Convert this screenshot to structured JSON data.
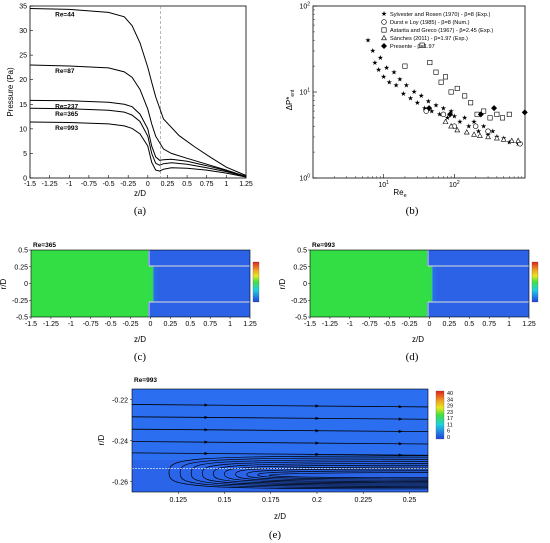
{
  "panels": {
    "a": "(a)",
    "b": "(b)",
    "c": "(c)",
    "d": "(d)",
    "e": "(e)"
  },
  "chart_data": [
    {
      "id": "a",
      "type": "line",
      "xlabel": "z/D",
      "ylabel": "Pressure (Pa)",
      "xlim": [
        -1.5,
        1.25
      ],
      "ylim": [
        0,
        35
      ],
      "xticks": [
        "-1.5",
        "-1.25",
        "-1",
        "-0.75",
        "-0.5",
        "-0.25",
        "0",
        "0.25",
        "0.5",
        "0.75",
        "1",
        "1.25"
      ],
      "yticks": [
        "0",
        "5",
        "10",
        "15",
        "20",
        "25",
        "30",
        "35"
      ],
      "series": [
        {
          "name": "Re=44",
          "x": [
            -1.5,
            -1.0,
            -0.5,
            -0.3,
            -0.2,
            -0.1,
            0.0,
            0.05,
            0.1,
            0.2,
            0.4,
            0.6,
            0.8,
            1.0,
            1.25
          ],
          "y": [
            34.5,
            34.3,
            33.7,
            32.8,
            31.0,
            27.5,
            22.5,
            19.5,
            16.5,
            12.0,
            8.6,
            6.3,
            4.2,
            2.2,
            0.5
          ]
        },
        {
          "name": "Re=87",
          "x": [
            -1.5,
            -1.0,
            -0.5,
            -0.3,
            -0.2,
            -0.1,
            0.0,
            0.05,
            0.1,
            0.2,
            0.3,
            0.5,
            0.75,
            1.0,
            1.25
          ],
          "y": [
            23.0,
            22.8,
            22.4,
            21.6,
            20.5,
            18.0,
            14.0,
            11.0,
            8.5,
            5.9,
            5.0,
            4.0,
            2.8,
            1.6,
            0.3
          ]
        },
        {
          "name": "Re=237",
          "x": [
            -1.5,
            -1.0,
            -0.5,
            -0.3,
            -0.2,
            -0.1,
            0.0,
            0.05,
            0.1,
            0.15,
            0.2,
            0.3,
            0.5,
            0.75,
            1.0,
            1.25
          ],
          "y": [
            15.8,
            15.7,
            15.4,
            15.0,
            14.5,
            13.0,
            10.0,
            6.5,
            4.3,
            3.6,
            3.7,
            3.8,
            3.4,
            2.5,
            1.5,
            0.3
          ]
        },
        {
          "name": "Re=365",
          "x": [
            -1.5,
            -1.0,
            -0.5,
            -0.3,
            -0.2,
            -0.1,
            0.0,
            0.05,
            0.1,
            0.15,
            0.2,
            0.3,
            0.5,
            0.75,
            1.0,
            1.25
          ],
          "y": [
            14.2,
            14.1,
            13.8,
            13.4,
            12.8,
            11.5,
            8.5,
            5.0,
            3.0,
            2.6,
            2.9,
            3.1,
            2.8,
            2.1,
            1.3,
            0.3
          ]
        },
        {
          "name": "Re=993",
          "x": [
            -1.5,
            -1.0,
            -0.5,
            -0.3,
            -0.2,
            -0.1,
            0.0,
            0.05,
            0.1,
            0.15,
            0.2,
            0.3,
            0.5,
            0.75,
            1.0,
            1.25
          ],
          "y": [
            11.4,
            11.3,
            11.0,
            10.6,
            10.1,
            9.0,
            6.5,
            3.2,
            1.6,
            1.4,
            1.8,
            2.1,
            2.0,
            1.6,
            1.0,
            0.2
          ]
        }
      ]
    },
    {
      "id": "b",
      "type": "scatter",
      "xlabel": "Re",
      "xlabel_sub": "e",
      "ylabel": "ΔP*",
      "ylabel_sub": "ent",
      "xscale": "log",
      "yscale": "log",
      "xlim": [
        1,
        1000
      ],
      "ylim": [
        1,
        100
      ],
      "xticks": [
        {
          "v": 10,
          "label": "10",
          "sup": "1"
        },
        {
          "v": 100,
          "label": "10",
          "sup": "2"
        }
      ],
      "yticks": [
        {
          "v": 1,
          "label": "10",
          "sup": "0"
        },
        {
          "v": 10,
          "label": "10",
          "sup": "1"
        },
        {
          "v": 100,
          "label": "10",
          "sup": "2"
        }
      ],
      "legend_position": "top-right",
      "series": [
        {
          "name": "Sylvester and Rosen (1970) - β=8 (Exp.)",
          "marker": "star",
          "x": [
            6,
            7,
            7.5,
            8.5,
            9,
            10,
            11,
            12,
            14,
            15,
            17,
            19,
            21,
            24,
            27,
            30,
            34,
            38,
            43,
            48,
            55,
            62,
            70,
            80,
            90,
            100,
            120,
            140,
            160,
            190,
            220,
            260,
            300,
            350,
            400,
            500,
            600,
            800
          ],
          "y": [
            40,
            30,
            22,
            18,
            25,
            15,
            19,
            13,
            17,
            12,
            14,
            9.5,
            12,
            8.5,
            10,
            7.5,
            9,
            6.5,
            7.8,
            6,
            7,
            5.5,
            6.5,
            5,
            6,
            5.2,
            4.5,
            5,
            4,
            4.5,
            3.5,
            4,
            3.2,
            3.5,
            3,
            2.9,
            2.6,
            2.5
          ]
        },
        {
          "name": "Durst e Loy (1985) - β=8 (Num.)",
          "marker": "circle",
          "x": [
            40,
            70,
            100,
            200,
            300,
            850
          ],
          "y": [
            6,
            5.5,
            4,
            4,
            3.5,
            2.5
          ]
        },
        {
          "name": "Astarita and Greco (1967) - β=2.45 (Exp.)",
          "marker": "square",
          "x": [
            20,
            35,
            45,
            55,
            65,
            75,
            90,
            110,
            140,
            170,
            210,
            260,
            320,
            400,
            480,
            600
          ],
          "y": [
            20,
            35,
            22,
            17,
            13,
            15,
            10,
            11,
            9,
            7.5,
            5.5,
            6,
            5,
            5.5,
            5,
            5.5
          ]
        },
        {
          "name": "Sánches (2011) - β=1.97 (Exp.)",
          "marker": "triangle",
          "x": [
            75,
            90,
            110,
            150,
            190,
            230,
            300,
            400,
            500,
            650,
            800
          ],
          "y": [
            4.5,
            4.0,
            3.6,
            3.4,
            3.2,
            3.1,
            3.0,
            2.9,
            2.8,
            2.7,
            2.7
          ]
        },
        {
          "name": "Presente - β=1.97",
          "marker": "diamond",
          "x": [
            44,
            87,
            237,
            365,
            993
          ],
          "y": [
            6.5,
            5.5,
            5.5,
            6.5,
            5.8
          ]
        }
      ]
    },
    {
      "id": "c",
      "type": "heatmap",
      "title": "Re=365",
      "xlabel": "z/D",
      "ylabel": "r/D",
      "xlim": [
        -1.5,
        1.25
      ],
      "ylim": [
        -0.5,
        0.5
      ],
      "xticks": [
        "-1.5",
        "-1.25",
        "-1",
        "-0.75",
        "-0.5",
        "-0.25",
        "0",
        "0.25",
        "0.5",
        "0.75",
        "1",
        "1.25"
      ],
      "yticks": [
        "-0.5",
        "-0.25",
        "0",
        "0.25",
        "0.5"
      ]
    },
    {
      "id": "d",
      "type": "heatmap",
      "title": "Re=993",
      "xlabel": "z/D",
      "ylabel": "r/D",
      "xlim": [
        -1.5,
        1.25
      ],
      "ylim": [
        -0.5,
        0.5
      ],
      "xticks": [
        "-1.5",
        "-1.25",
        "-1",
        "-0.75",
        "-0.5",
        "-0.25",
        "0",
        "0.25",
        "0.5",
        "0.75",
        "1",
        "1.25"
      ],
      "yticks": [
        "-0.5",
        "-0.25",
        "0",
        "0.25",
        "0.5"
      ]
    },
    {
      "id": "e",
      "type": "heatmap",
      "title": "Re=993",
      "xlabel": "z/D",
      "ylabel": "r/D",
      "xlim": [
        0.1,
        0.26
      ],
      "ylim": [
        -0.265,
        -0.215
      ],
      "xticks": [
        "0.125",
        "0.15",
        "0.175",
        "0.2",
        "0.225",
        "0.25"
      ],
      "yticks": [
        "-0.22",
        "-0.24",
        "-0.26"
      ],
      "colorbar_ticks": [
        "40",
        "34",
        "29",
        "23",
        "17",
        "11",
        "6",
        "0"
      ]
    }
  ]
}
